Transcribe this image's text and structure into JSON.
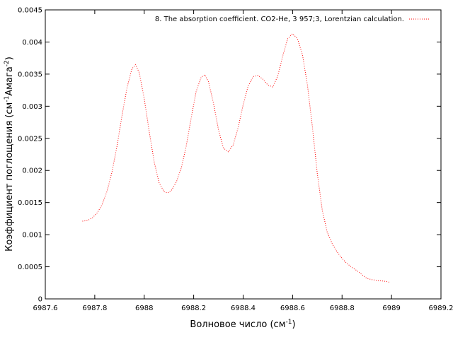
{
  "chart_data": {
    "type": "line",
    "title": "",
    "xlabel": "Волновое число (см",
    "xlabel_sup": "-1",
    "xlabel_tail": ")",
    "ylabel": "Коэффициент поглощения (см",
    "ylabel_sup1": "-1",
    "ylabel_mid": "Амага",
    "ylabel_sup2": "-2",
    "ylabel_tail": ")",
    "xlim": [
      6987.6,
      6989.2
    ],
    "ylim": [
      0,
      0.0045
    ],
    "x_ticks": [
      "6987.6",
      "6987.8",
      "6988",
      "6988.2",
      "6988.4",
      "6988.6",
      "6988.8",
      "6989",
      "6989.2"
    ],
    "y_ticks": [
      "0",
      "0.0005",
      "0.001",
      "0.0015",
      "0.002",
      "0.0025",
      "0.003",
      "0.0035",
      "0.004",
      "0.0045"
    ],
    "grid": false,
    "legend_position": "top-right",
    "series": [
      {
        "name": "8.  The absorption coefficient. CO2-He, 3  957;3, Lorentzian calculation.",
        "color": "#ff0000",
        "line_style": "dotted",
        "points": [
          [
            6987.75,
            0.00121
          ],
          [
            6987.77,
            0.00122
          ],
          [
            6987.79,
            0.00126
          ],
          [
            6987.81,
            0.00134
          ],
          [
            6987.83,
            0.00147
          ],
          [
            6987.85,
            0.00168
          ],
          [
            6987.87,
            0.00198
          ],
          [
            6987.89,
            0.00238
          ],
          [
            6987.91,
            0.00285
          ],
          [
            6987.93,
            0.00328
          ],
          [
            6987.95,
            0.00358
          ],
          [
            6987.965,
            0.00365
          ],
          [
            6987.98,
            0.00352
          ],
          [
            6988.0,
            0.00312
          ],
          [
            6988.02,
            0.00261
          ],
          [
            6988.04,
            0.00214
          ],
          [
            6988.06,
            0.00181
          ],
          [
            6988.08,
            0.00167
          ],
          [
            6988.095,
            0.00165
          ],
          [
            6988.11,
            0.00169
          ],
          [
            6988.13,
            0.00182
          ],
          [
            6988.15,
            0.00204
          ],
          [
            6988.17,
            0.00238
          ],
          [
            6988.19,
            0.00282
          ],
          [
            6988.21,
            0.00323
          ],
          [
            6988.23,
            0.00345
          ],
          [
            6988.245,
            0.00349
          ],
          [
            6988.26,
            0.00338
          ],
          [
            6988.28,
            0.00305
          ],
          [
            6988.3,
            0.00264
          ],
          [
            6988.32,
            0.00235
          ],
          [
            6988.34,
            0.00229
          ],
          [
            6988.36,
            0.0024
          ],
          [
            6988.38,
            0.00267
          ],
          [
            6988.4,
            0.00302
          ],
          [
            6988.42,
            0.00331
          ],
          [
            6988.44,
            0.00346
          ],
          [
            6988.46,
            0.00348
          ],
          [
            6988.48,
            0.00342
          ],
          [
            6988.5,
            0.00333
          ],
          [
            6988.52,
            0.0033
          ],
          [
            6988.54,
            0.00347
          ],
          [
            6988.56,
            0.00378
          ],
          [
            6988.58,
            0.00405
          ],
          [
            6988.6,
            0.00413
          ],
          [
            6988.62,
            0.00405
          ],
          [
            6988.64,
            0.0038
          ],
          [
            6988.66,
            0.00333
          ],
          [
            6988.68,
            0.00268
          ],
          [
            6988.7,
            0.00195
          ],
          [
            6988.72,
            0.00138
          ],
          [
            6988.74,
            0.00104
          ],
          [
            6988.76,
            0.00086
          ],
          [
            6988.78,
            0.00073
          ],
          [
            6988.8,
            0.00063
          ],
          [
            6988.82,
            0.00055
          ],
          [
            6988.84,
            0.00049
          ],
          [
            6988.86,
            0.00044
          ],
          [
            6988.88,
            0.00038
          ],
          [
            6988.9,
            0.00032
          ],
          [
            6988.92,
            0.0003
          ],
          [
            6988.94,
            0.00029
          ],
          [
            6988.96,
            0.00028
          ],
          [
            6988.98,
            0.00027
          ],
          [
            6988.99,
            0.00026
          ]
        ]
      }
    ]
  }
}
